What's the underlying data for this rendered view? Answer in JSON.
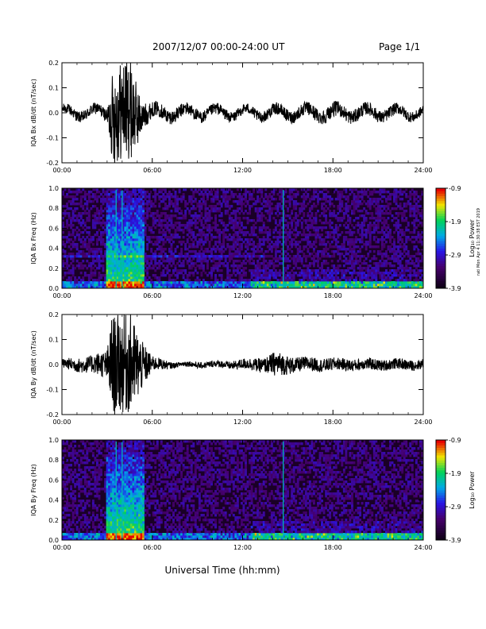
{
  "header": {
    "title": "2007/12/07  00:00-24:00 UT",
    "page": "Page 1/1"
  },
  "xlabel": "Universal Time (hh:mm)",
  "side_note": "rati Mon Apr 4 11:30:38 EST 2019",
  "chart_data": [
    {
      "type": "line",
      "ylabel": "IQA Bx dB/dt (nT/sec)",
      "xlim": [
        0,
        24
      ],
      "ylim": [
        -0.2,
        0.2
      ],
      "x_ticks": [
        "00:00",
        "06:00",
        "12:00",
        "18:00",
        "24:00"
      ],
      "y_ticks": [
        "-0.2",
        "-0.1",
        "0.0",
        "0.1",
        "0.2"
      ],
      "series": [
        {
          "color": "#000000",
          "envelope": [
            {
              "t": 0,
              "amp": 0.02
            },
            {
              "t": 3.0,
              "amp": 0.025
            },
            {
              "t": 3.4,
              "amp": 0.2
            },
            {
              "t": 3.9,
              "amp": 0.2
            },
            {
              "t": 4.6,
              "amp": 0.2
            },
            {
              "t": 5.3,
              "amp": 0.06
            },
            {
              "t": 6.0,
              "amp": 0.03
            },
            {
              "t": 12,
              "amp": 0.02
            },
            {
              "t": 18,
              "amp": 0.03
            },
            {
              "t": 24,
              "amp": 0.02
            }
          ],
          "oscillation": {
            "amp": 0.018,
            "period_h": 2.0
          }
        }
      ]
    },
    {
      "type": "heatmap",
      "ylabel": "IQA Bx Freq (Hz)",
      "xlim": [
        0,
        24
      ],
      "ylim": [
        0.0,
        1.0
      ],
      "x_ticks": [
        "00:00",
        "06:00",
        "12:00",
        "18:00",
        "24:00"
      ],
      "y_ticks": [
        "0.0",
        "0.2",
        "0.4",
        "0.6",
        "0.8",
        "1.0"
      ],
      "colorbar": {
        "label": "Log₁₀ Power",
        "min": -3.9,
        "max": -0.9,
        "ticks": [
          "-0.9",
          "-1.9",
          "-2.9",
          "-3.9"
        ]
      },
      "features": {
        "active_interval_h": [
          3.0,
          5.5
        ],
        "spikes_h": [
          3.6,
          4.0,
          14.7
        ],
        "band_hz": 0.33,
        "band_until_h": 13.5,
        "late_activity_h": [
          12.5,
          24
        ]
      }
    },
    {
      "type": "line",
      "ylabel": "IQA By dB/dt (nT/sec)",
      "xlim": [
        0,
        24
      ],
      "ylim": [
        -0.2,
        0.2
      ],
      "x_ticks": [
        "00:00",
        "06:00",
        "12:00",
        "18:00",
        "24:00"
      ],
      "y_ticks": [
        "-0.2",
        "-0.1",
        "0.0",
        "0.1",
        "0.2"
      ],
      "series": [
        {
          "color": "#000000",
          "envelope": [
            {
              "t": 0,
              "amp": 0.02
            },
            {
              "t": 2.0,
              "amp": 0.035
            },
            {
              "t": 3.0,
              "amp": 0.06
            },
            {
              "t": 3.3,
              "amp": 0.2
            },
            {
              "t": 4.6,
              "amp": 0.2
            },
            {
              "t": 5.3,
              "amp": 0.1
            },
            {
              "t": 6.0,
              "amp": 0.03
            },
            {
              "t": 7.5,
              "amp": 0.01
            },
            {
              "t": 11,
              "amp": 0.015
            },
            {
              "t": 13.5,
              "amp": 0.03
            },
            {
              "t": 14.2,
              "amp": 0.05
            },
            {
              "t": 15.5,
              "amp": 0.03
            },
            {
              "t": 18,
              "amp": 0.025
            },
            {
              "t": 24,
              "amp": 0.02
            }
          ],
          "oscillation": {
            "amp": 0.004,
            "period_h": 2.0
          }
        }
      ]
    },
    {
      "type": "heatmap",
      "ylabel": "IQA By Freq (Hz)",
      "xlim": [
        0,
        24
      ],
      "ylim": [
        0.0,
        1.0
      ],
      "x_ticks": [
        "00:00",
        "06:00",
        "12:00",
        "18:00",
        "24:00"
      ],
      "y_ticks": [
        "0.0",
        "0.2",
        "0.4",
        "0.6",
        "0.8",
        "1.0"
      ],
      "colorbar": {
        "label": "Log₁₀ Power",
        "min": -3.9,
        "max": -0.9,
        "ticks": [
          "-0.9",
          "-1.9",
          "-2.9",
          "-3.9"
        ]
      },
      "features": {
        "active_interval_h": [
          3.0,
          5.5
        ],
        "spikes_h": [
          3.6,
          4.0,
          14.7
        ],
        "band_hz": null,
        "band_until_h": null,
        "late_activity_h": [
          12.5,
          24
        ]
      }
    }
  ]
}
